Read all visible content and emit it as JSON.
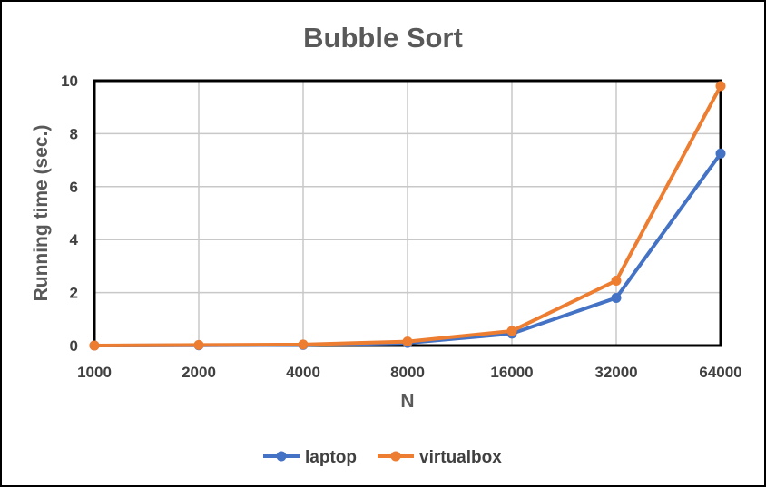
{
  "chart_data": {
    "type": "line",
    "title": "Bubble Sort",
    "xlabel": "N",
    "ylabel": "Running time (sec.)",
    "categories": [
      "1000",
      "2000",
      "4000",
      "8000",
      "16000",
      "32000",
      "64000"
    ],
    "ylim": [
      0,
      10
    ],
    "yticks": [
      "0",
      "2",
      "4",
      "6",
      "8",
      "10"
    ],
    "grid": true,
    "legend_position": "bottom",
    "series": [
      {
        "name": "laptop",
        "color": "#4472C4",
        "values": [
          0.0,
          0.01,
          0.02,
          0.1,
          0.45,
          1.8,
          7.25
        ]
      },
      {
        "name": "virtualbox",
        "color": "#ED7D31",
        "values": [
          0.0,
          0.02,
          0.04,
          0.15,
          0.55,
          2.45,
          9.8
        ]
      }
    ]
  }
}
